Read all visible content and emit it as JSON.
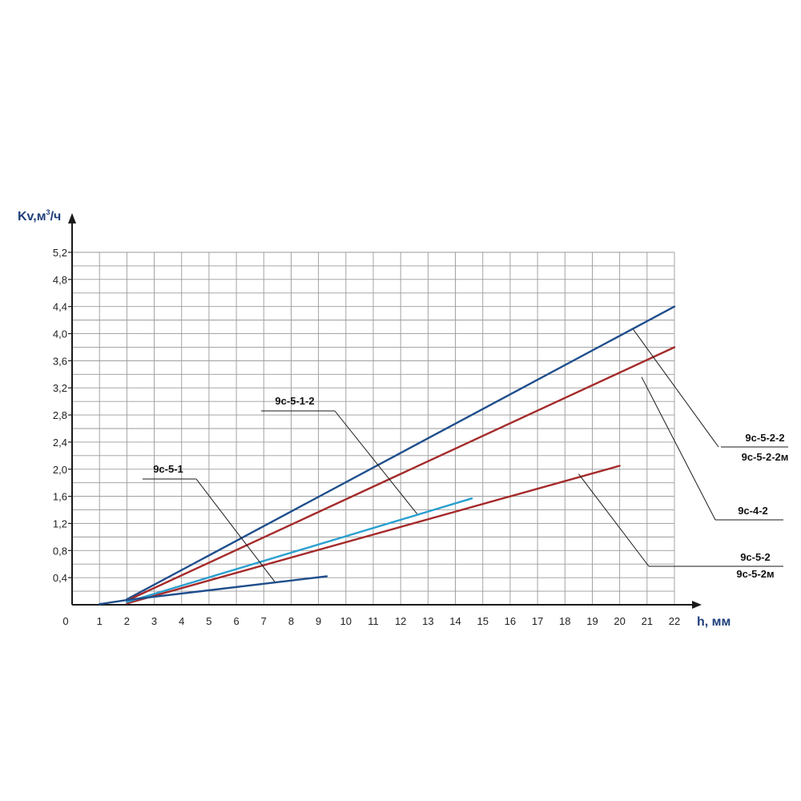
{
  "chart_data": {
    "type": "line",
    "xlabel": "h, мм",
    "ylabel": "Kv,м",
    "ylabel_sup": "3",
    "ylabel_tail": "/ч",
    "x_ticks": [
      "0",
      "1",
      "2",
      "3",
      "4",
      "5",
      "6",
      "7",
      "8",
      "9",
      "10",
      "11",
      "12",
      "13",
      "14",
      "15",
      "16",
      "17",
      "18",
      "19",
      "20",
      "21",
      "22"
    ],
    "y_ticks": [
      "0,4",
      "0,8",
      "1,2",
      "1,6",
      "2,0",
      "2,4",
      "2,8",
      "3,2",
      "3,6",
      "4,0",
      "4,4",
      "4,8",
      "5,2"
    ],
    "xlim": [
      0,
      22
    ],
    "ylim": [
      0,
      5.2
    ],
    "grid": true,
    "colors": {
      "dark_blue": "#1f4e8c",
      "red": "#a52a2a",
      "light_blue": "#2a9fd0",
      "grid": "#9a9a9a",
      "axis": "#1a1a1a"
    },
    "series": [
      {
        "name": "9с-5-2-2 / 9с-5-2-2м",
        "color": "#1f4e8c",
        "x": [
          2,
          22
        ],
        "y": [
          0.08,
          4.4
        ]
      },
      {
        "name": "9с-4-2",
        "color": "#a52a2a",
        "x": [
          2,
          22
        ],
        "y": [
          0.06,
          3.8
        ]
      },
      {
        "name": "9с-5-2 / 9с-5-2м",
        "color": "#a52a2a",
        "x": [
          2,
          20
        ],
        "y": [
          0.02,
          2.05
        ]
      },
      {
        "name": "9с-5-1-2",
        "color": "#2a9fd0",
        "x": [
          2,
          14.6
        ],
        "y": [
          0.04,
          1.57
        ]
      },
      {
        "name": "9с-5-1",
        "color": "#1f4e8c",
        "x": [
          1,
          2,
          9.3
        ],
        "y": [
          0.01,
          0.07,
          0.42
        ]
      }
    ],
    "annotations": [
      {
        "lines": [
          "9с-5-1"
        ],
        "target": [
          7.4,
          0.34
        ]
      },
      {
        "lines": [
          "9с-5-1-2"
        ],
        "target": [
          12.6,
          1.34
        ]
      },
      {
        "lines": [
          "9с-5-2-2",
          "9с-5-2-2м"
        ],
        "target": [
          20.5,
          4.06
        ]
      },
      {
        "lines": [
          "9с-4-2"
        ],
        "target": [
          20.8,
          3.36
        ]
      },
      {
        "lines": [
          "9с-5-2",
          "9с-5-2м"
        ],
        "target": [
          18.5,
          1.93
        ]
      }
    ]
  }
}
